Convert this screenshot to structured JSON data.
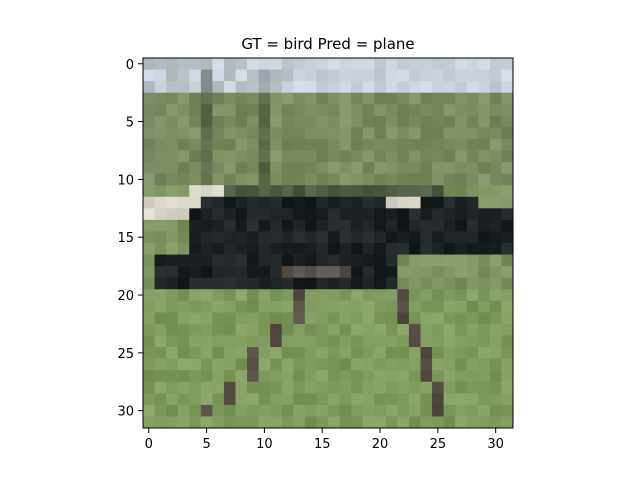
{
  "chart_data": {
    "type": "heatmap",
    "title": "GT = bird Pred = plane",
    "xlabel": "",
    "ylabel": "",
    "xlim": [
      -0.5,
      31.5
    ],
    "ylim": [
      31.5,
      -0.5
    ],
    "x_ticks": [
      0,
      5,
      10,
      15,
      20,
      25,
      30
    ],
    "x_tick_labels": [
      "0",
      "5",
      "10",
      "15",
      "20",
      "25",
      "30"
    ],
    "y_ticks": [
      0,
      5,
      10,
      15,
      20,
      25,
      30
    ],
    "y_tick_labels": [
      "0",
      "5",
      "10",
      "15",
      "20",
      "25",
      "30"
    ],
    "grid": false,
    "image_size": [
      32,
      32
    ],
    "image_description_colors": {
      "sky": "#c8d0dc",
      "foliage": "#7a8c60",
      "grass": "#7e9a5c",
      "bird_body": "#1c2224",
      "bird_wing_light": "#d8d4c8",
      "legs": "#5a5248"
    }
  }
}
